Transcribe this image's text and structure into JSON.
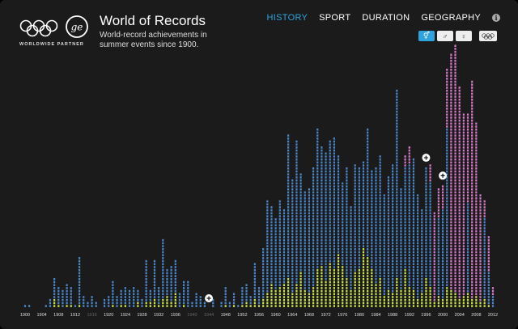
{
  "header": {
    "title": "World of Records",
    "subtitle": "World-record achievements in summer events since 1900.",
    "partner": "WORLDWIDE PARTNER"
  },
  "nav": {
    "tabs": [
      {
        "label": "HISTORY",
        "active": true
      },
      {
        "label": "SPORT",
        "active": false
      },
      {
        "label": "DURATION",
        "active": false
      },
      {
        "label": "GEOGRAPHY",
        "active": false
      }
    ],
    "info_icon": "i"
  },
  "filters": {
    "both": "⚥",
    "male": "♂",
    "female": "♀",
    "olympic_icon": "olympic-rings-icon"
  },
  "colors": {
    "accent": "#2ea3dd",
    "men": "#4a86c8",
    "women": "#d67ac8",
    "olympic": "#c8e04a",
    "background": "#1b1b1b"
  },
  "chart_data": {
    "type": "bar",
    "title": "",
    "xlabel": "",
    "ylabel": "",
    "x_range": [
      1900,
      2012
    ],
    "x_tick_labels": [
      "1900",
      "1904",
      "1908",
      "1912",
      "1916",
      "1920",
      "1924",
      "1928",
      "1932",
      "1936",
      "1940",
      "1944",
      "1948",
      "1952",
      "1956",
      "1960",
      "1964",
      "1968",
      "1972",
      "1976",
      "1980",
      "1984",
      "1988",
      "1992",
      "1996",
      "2000",
      "2004",
      "2008",
      "2012"
    ],
    "dimmed_ticks": [
      "1916",
      "1940",
      "1944"
    ],
    "series": [
      {
        "name": "men",
        "values": [
          1,
          1,
          0,
          0,
          0,
          1,
          3,
          10,
          7,
          6,
          8,
          7,
          1,
          17,
          4,
          2,
          4,
          2,
          0,
          3,
          4,
          9,
          4,
          6,
          7,
          6,
          7,
          6,
          3,
          16,
          6,
          16,
          7,
          23,
          13,
          14,
          16,
          5,
          9,
          9,
          2,
          5,
          4,
          2,
          0,
          3,
          0,
          2,
          7,
          2,
          5,
          1,
          7,
          8,
          4,
          15,
          7,
          20,
          36,
          34,
          30,
          36,
          33,
          58,
          43,
          56,
          45,
          39,
          40,
          47,
          60,
          54,
          52,
          56,
          57,
          51,
          42,
          47,
          34,
          48,
          47,
          49,
          60,
          46,
          47,
          51,
          38,
          44,
          48,
          73,
          40,
          47,
          48,
          50,
          38,
          33,
          47,
          42,
          15,
          30,
          33,
          60,
          37,
          30,
          28,
          26,
          35,
          26,
          30,
          16,
          30,
          12,
          4
        ]
      },
      {
        "name": "women",
        "values": [
          0,
          0,
          0,
          0,
          0,
          0,
          0,
          0,
          0,
          0,
          0,
          0,
          0,
          0,
          0,
          0,
          0,
          0,
          0,
          0,
          0,
          0,
          0,
          0,
          0,
          0,
          0,
          0,
          0,
          0,
          0,
          0,
          0,
          0,
          0,
          0,
          0,
          0,
          0,
          0,
          0,
          0,
          0,
          0,
          0,
          0,
          0,
          0,
          0,
          0,
          0,
          0,
          0,
          0,
          0,
          0,
          0,
          0,
          0,
          0,
          0,
          0,
          0,
          0,
          0,
          0,
          0,
          0,
          0,
          0,
          0,
          0,
          0,
          0,
          0,
          0,
          0,
          0,
          0,
          0,
          0,
          0,
          0,
          0,
          0,
          0,
          0,
          0,
          0,
          0,
          0,
          4,
          6,
          0,
          0,
          0,
          0,
          6,
          17,
          10,
          8,
          20,
          48,
          58,
          46,
          39,
          30,
          50,
          32,
          22,
          6,
          12,
          3
        ]
      },
      {
        "name": "olympic",
        "values": [
          0,
          0,
          0,
          0,
          0,
          0,
          0,
          3,
          1,
          0,
          1,
          1,
          0,
          1,
          0,
          0,
          0,
          0,
          0,
          0,
          0,
          1,
          0,
          1,
          1,
          0,
          0,
          2,
          0,
          2,
          2,
          3,
          1,
          3,
          4,
          2,
          5,
          0,
          1,
          0,
          0,
          0,
          0,
          0,
          0,
          0,
          0,
          0,
          1,
          0,
          1,
          0,
          1,
          2,
          1,
          3,
          1,
          3,
          5,
          8,
          6,
          7,
          8,
          10,
          5,
          8,
          12,
          6,
          5,
          7,
          13,
          14,
          9,
          15,
          13,
          18,
          14,
          10,
          6,
          12,
          13,
          20,
          17,
          13,
          8,
          10,
          4,
          6,
          5,
          10,
          6,
          13,
          7,
          6,
          3,
          5,
          10,
          7,
          2,
          4,
          3,
          7,
          6,
          5,
          3,
          4,
          5,
          3,
          4,
          2,
          3,
          1,
          0
        ]
      }
    ],
    "annotation_markers": [
      1944,
      1996,
      2000
    ],
    "grid": false,
    "legend": "none"
  }
}
